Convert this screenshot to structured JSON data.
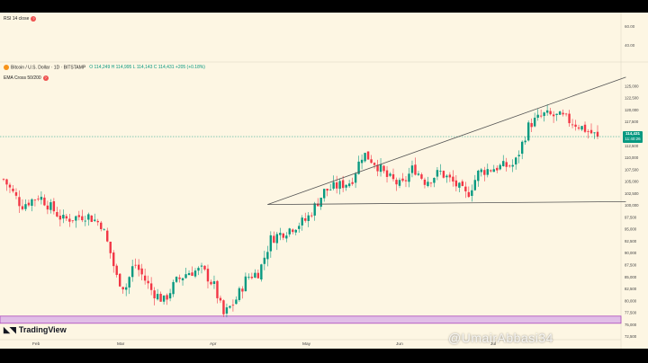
{
  "indicator_rsi": {
    "label": "RSI 14 close",
    "info_icon": "question-icon"
  },
  "symbol": {
    "name": "Bitcoin / U.S. Dollar · 1D · BITSTAMP",
    "ohlc": "O 114,249  H 114,995  L 114,143  C 114,431  +205 (+0.18%)",
    "coin_icon": "bitcoin-icon"
  },
  "indicator_ema": {
    "label": "EMA Cross 50/200"
  },
  "rsi_axis": [
    "60.00",
    "40.00"
  ],
  "price_badge": {
    "price": "114,431",
    "countdown": "11:40:26",
    "color": "#089981"
  },
  "brand": {
    "name": "TradingView"
  },
  "watermark": "@UmairAbbasi34",
  "colors": {
    "up": "#089981",
    "down": "#f23645",
    "background": "#fdf6e3",
    "band": "#e1bee7",
    "band_border": "#ab47bc"
  },
  "chart_data": {
    "type": "candlestick",
    "title": "Bitcoin / U.S. Dollar · 1D · BITSTAMP",
    "ylim": [
      73000,
      128000
    ],
    "y_ticks": [
      "125,000",
      "122,500",
      "120,000",
      "117,500",
      "115,000",
      "112,500",
      "110,000",
      "107,500",
      "105,000",
      "102,500",
      "100,000",
      "97,500",
      "95,000",
      "92,500",
      "90,000",
      "87,500",
      "85,000",
      "82,500",
      "80,000",
      "77,500",
      "75,000",
      "72,500"
    ],
    "x_months": [
      "Feb",
      "Mar",
      "Apr",
      "May",
      "Jun",
      "Jul"
    ],
    "anchors": [
      {
        "p": 0,
        "v": 105500
      },
      {
        "p": 0.03,
        "v": 100000
      },
      {
        "p": 0.06,
        "v": 102000
      },
      {
        "p": 0.1,
        "v": 97000
      },
      {
        "p": 0.14,
        "v": 98000
      },
      {
        "p": 0.165,
        "v": 96000
      },
      {
        "p": 0.18,
        "v": 90000
      },
      {
        "p": 0.19,
        "v": 85000
      },
      {
        "p": 0.205,
        "v": 82500
      },
      {
        "p": 0.22,
        "v": 88000
      },
      {
        "p": 0.235,
        "v": 85000
      },
      {
        "p": 0.25,
        "v": 82000
      },
      {
        "p": 0.27,
        "v": 80000
      },
      {
        "p": 0.29,
        "v": 84000
      },
      {
        "p": 0.31,
        "v": 86000
      },
      {
        "p": 0.335,
        "v": 86500
      },
      {
        "p": 0.355,
        "v": 83000
      },
      {
        "p": 0.37,
        "v": 77000
      },
      {
        "p": 0.39,
        "v": 80000
      },
      {
        "p": 0.41,
        "v": 85000
      },
      {
        "p": 0.43,
        "v": 86000
      },
      {
        "p": 0.45,
        "v": 93000
      },
      {
        "p": 0.48,
        "v": 95000
      },
      {
        "p": 0.51,
        "v": 97000
      },
      {
        "p": 0.54,
        "v": 103000
      },
      {
        "p": 0.56,
        "v": 104000
      },
      {
        "p": 0.585,
        "v": 105000
      },
      {
        "p": 0.605,
        "v": 111000
      },
      {
        "p": 0.625,
        "v": 109000
      },
      {
        "p": 0.645,
        "v": 106000
      },
      {
        "p": 0.67,
        "v": 104000
      },
      {
        "p": 0.69,
        "v": 108000
      },
      {
        "p": 0.71,
        "v": 105000
      },
      {
        "p": 0.735,
        "v": 107000
      },
      {
        "p": 0.76,
        "v": 104500
      },
      {
        "p": 0.78,
        "v": 102000
      },
      {
        "p": 0.8,
        "v": 107000
      },
      {
        "p": 0.83,
        "v": 108000
      },
      {
        "p": 0.86,
        "v": 108500
      },
      {
        "p": 0.885,
        "v": 117000
      },
      {
        "p": 0.91,
        "v": 119000
      },
      {
        "p": 0.94,
        "v": 118500
      },
      {
        "p": 0.965,
        "v": 117000
      },
      {
        "p": 1,
        "v": 114400
      }
    ],
    "candle_count": 190,
    "trendline_upper": {
      "from": {
        "day": 84,
        "price": 100200
      },
      "to": {
        "day": 198,
        "price": 126900
      }
    },
    "trendline_lower": {
      "from": {
        "day": 84,
        "price": 100200
      },
      "to": {
        "day": 198,
        "price": 100800
      }
    },
    "support_band": [
      75300,
      76800
    ],
    "last_price": 114431
  }
}
